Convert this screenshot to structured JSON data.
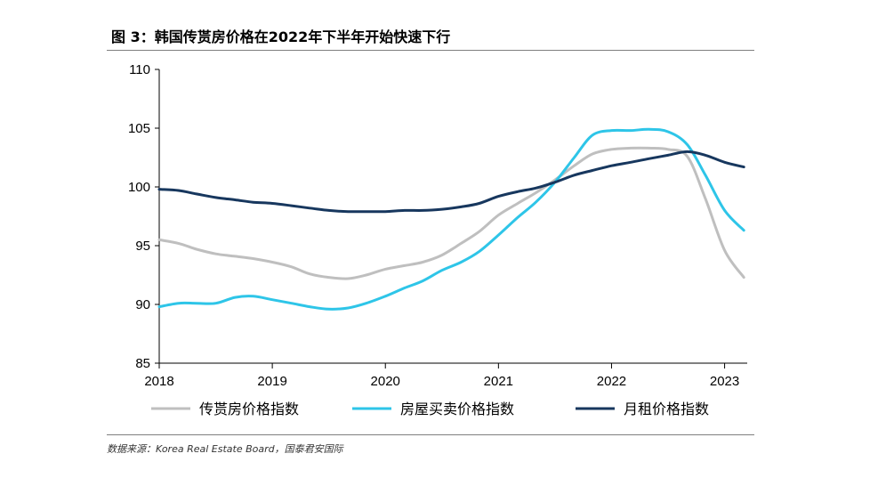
{
  "header": {
    "title": "图 3：韩国传贳房价格在2022年下半年开始快速下行"
  },
  "source": {
    "text": "数据来源：Korea Real Estate Board，国泰君安国际"
  },
  "chart_data": {
    "type": "line",
    "title": "图 3：韩国传贳房价格在2022年下半年开始快速下行",
    "xlabel": "",
    "ylabel": "",
    "xlim": [
      2018.0,
      2023.2
    ],
    "ylim": [
      85,
      110
    ],
    "yticks": [
      85,
      90,
      95,
      100,
      105,
      110
    ],
    "xticks": [
      2018,
      2019,
      2020,
      2021,
      2022,
      2023
    ],
    "xtick_labels": [
      "2018",
      "2019",
      "2020",
      "2021",
      "2022",
      "2023"
    ],
    "grid": false,
    "legend_position": "bottom",
    "series": [
      {
        "name": "传贳房价格指数",
        "color": "#bfbfbf",
        "x": [
          2018.0,
          2018.17,
          2018.33,
          2018.5,
          2018.67,
          2018.83,
          2019.0,
          2019.17,
          2019.33,
          2019.5,
          2019.67,
          2019.83,
          2020.0,
          2020.17,
          2020.33,
          2020.5,
          2020.67,
          2020.83,
          2021.0,
          2021.17,
          2021.33,
          2021.5,
          2021.67,
          2021.83,
          2022.0,
          2022.17,
          2022.33,
          2022.5,
          2022.67,
          2022.83,
          2023.0,
          2023.17
        ],
        "y": [
          95.5,
          95.2,
          94.7,
          94.3,
          94.1,
          93.9,
          93.6,
          93.2,
          92.6,
          92.3,
          92.2,
          92.5,
          93.0,
          93.3,
          93.6,
          94.2,
          95.2,
          96.2,
          97.6,
          98.6,
          99.5,
          100.6,
          101.8,
          102.8,
          103.2,
          103.3,
          103.3,
          103.2,
          102.6,
          99.0,
          94.6,
          92.3
        ]
      },
      {
        "name": "房屋买卖价格指数",
        "color": "#2ec5e8",
        "x": [
          2018.0,
          2018.17,
          2018.33,
          2018.5,
          2018.67,
          2018.83,
          2019.0,
          2019.17,
          2019.33,
          2019.5,
          2019.67,
          2019.83,
          2020.0,
          2020.17,
          2020.33,
          2020.5,
          2020.67,
          2020.83,
          2021.0,
          2021.17,
          2021.33,
          2021.5,
          2021.67,
          2021.83,
          2022.0,
          2022.17,
          2022.33,
          2022.5,
          2022.67,
          2022.83,
          2023.0,
          2023.17
        ],
        "y": [
          89.8,
          90.1,
          90.1,
          90.1,
          90.6,
          90.7,
          90.4,
          90.1,
          89.8,
          89.6,
          89.7,
          90.1,
          90.7,
          91.4,
          92.0,
          92.9,
          93.6,
          94.5,
          95.9,
          97.4,
          98.7,
          100.4,
          102.5,
          104.4,
          104.8,
          104.8,
          104.9,
          104.7,
          103.6,
          101.0,
          98.0,
          96.3
        ]
      },
      {
        "name": "月租价格指数",
        "color": "#17375e",
        "x": [
          2018.0,
          2018.17,
          2018.33,
          2018.5,
          2018.67,
          2018.83,
          2019.0,
          2019.17,
          2019.33,
          2019.5,
          2019.67,
          2019.83,
          2020.0,
          2020.17,
          2020.33,
          2020.5,
          2020.67,
          2020.83,
          2021.0,
          2021.17,
          2021.33,
          2021.5,
          2021.67,
          2021.83,
          2022.0,
          2022.17,
          2022.33,
          2022.5,
          2022.67,
          2022.83,
          2023.0,
          2023.17
        ],
        "y": [
          99.8,
          99.7,
          99.4,
          99.1,
          98.9,
          98.7,
          98.6,
          98.4,
          98.2,
          98.0,
          97.9,
          97.9,
          97.9,
          98.0,
          98.0,
          98.1,
          98.3,
          98.6,
          99.2,
          99.6,
          99.9,
          100.4,
          101.0,
          101.4,
          101.8,
          102.1,
          102.4,
          102.7,
          103.0,
          102.7,
          102.1,
          101.7
        ]
      }
    ]
  }
}
